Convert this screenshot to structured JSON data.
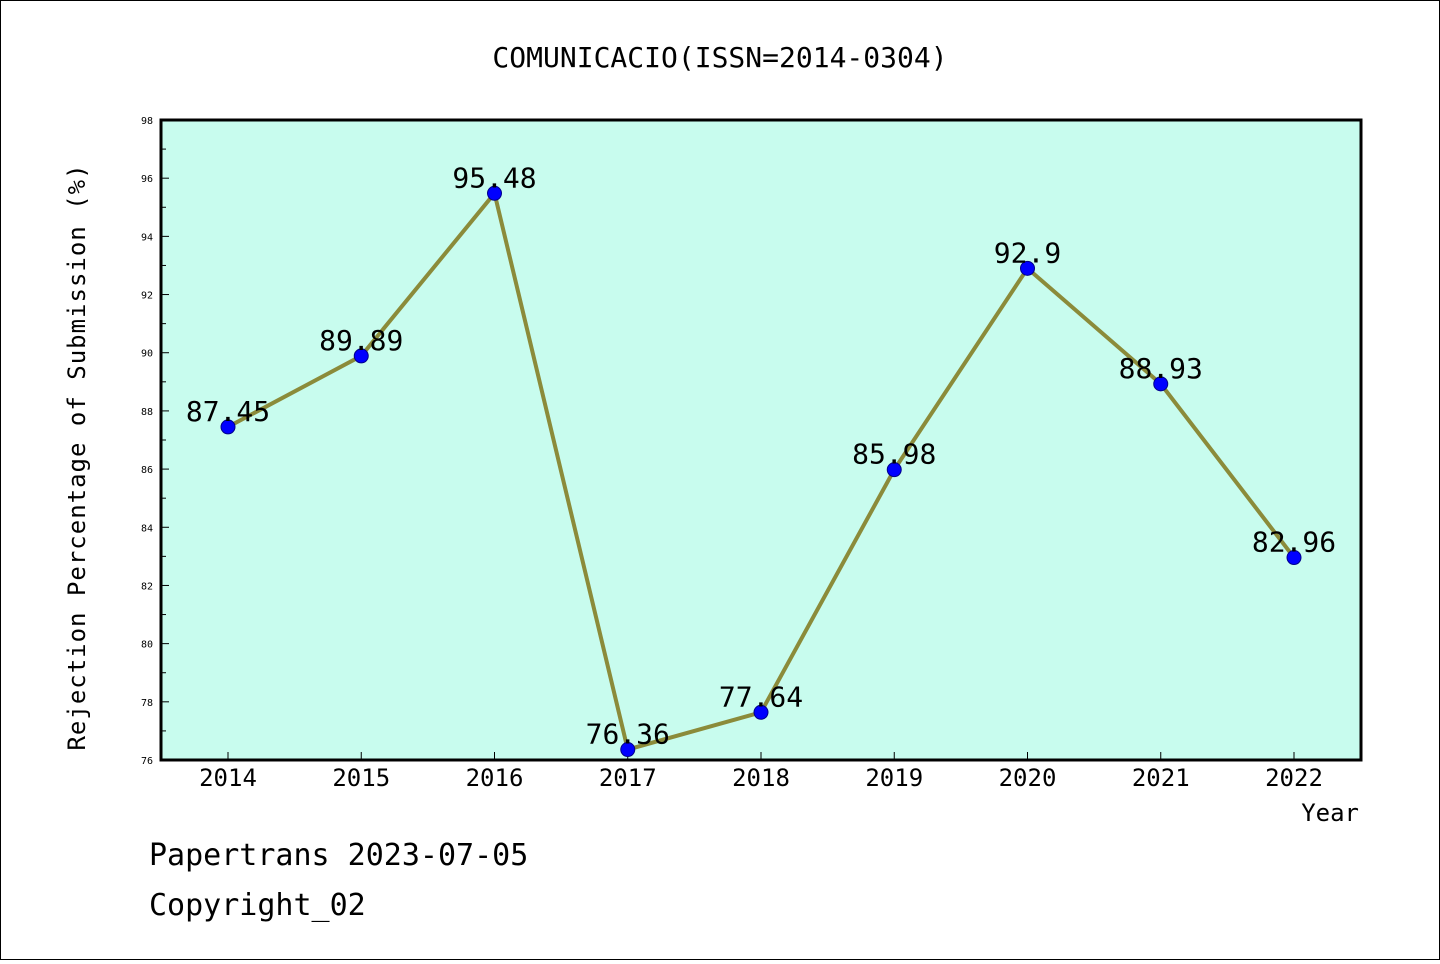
{
  "footer": {
    "line1": "Papertrans 2023-07-05",
    "line2": "Copyright_02"
  },
  "chart_data": {
    "type": "line",
    "title": "COMUNICACIO(ISSN=2014-0304)",
    "xlabel": "Year",
    "ylabel": "Rejection Percentage of Submission (%)",
    "categories": [
      "2014",
      "2015",
      "2016",
      "2017",
      "2018",
      "2019",
      "2020",
      "2021",
      "2022"
    ],
    "values": [
      87.45,
      89.89,
      95.48,
      76.36,
      77.64,
      85.98,
      92.9,
      88.93,
      82.96
    ],
    "data_labels": [
      "87.45",
      "89.89",
      "95.48",
      "76.36",
      "77.64",
      "85.98",
      "92.9",
      "88.93",
      "82.96"
    ],
    "ylim": [
      76,
      98
    ],
    "yticks": [
      76,
      78,
      80,
      82,
      84,
      86,
      88,
      90,
      92,
      94,
      96,
      98
    ],
    "grid": false,
    "colors": {
      "plot_background": "#c8fcee",
      "line": "#8b8b3a",
      "marker": "#0000ff",
      "marker_edge": "#00008b"
    }
  }
}
